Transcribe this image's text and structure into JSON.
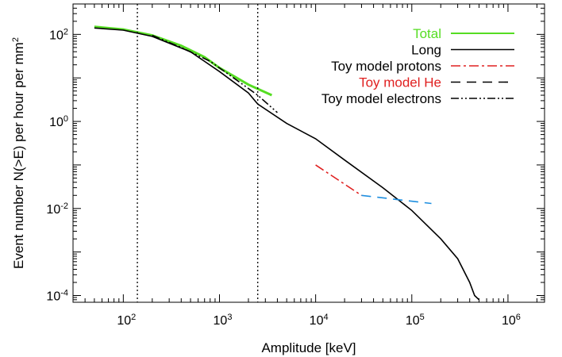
{
  "chart_data": {
    "type": "line",
    "title": "",
    "xlabel": "Amplitude [keV]",
    "ylabel": "Event number N(>E) per hour per mm",
    "ylabel_superscript": "2",
    "xscale": "log",
    "yscale": "log",
    "xlim": [
      30,
      2400000
    ],
    "ylim": [
      7e-05,
      500
    ],
    "x_ticks": [
      {
        "base": "10",
        "exp": "2",
        "value": 100
      },
      {
        "base": "10",
        "exp": "3",
        "value": 1000
      },
      {
        "base": "10",
        "exp": "4",
        "value": 10000
      },
      {
        "base": "10",
        "exp": "5",
        "value": 100000
      },
      {
        "base": "10",
        "exp": "6",
        "value": 1000000
      }
    ],
    "y_ticks": [
      {
        "base": "10",
        "exp": "-4",
        "value": 0.0001
      },
      {
        "base": "10",
        "exp": "-2",
        "value": 0.01
      },
      {
        "base": "10",
        "exp": "0",
        "value": 1
      },
      {
        "base": "10",
        "exp": "2",
        "value": 100
      }
    ],
    "vertical_markers": [
      140,
      2500
    ],
    "grid": false,
    "legend_position": "top-right",
    "legend": [
      {
        "label": "Total",
        "label_color": "#55dd22",
        "line_color": "#55dd22",
        "dash": "solid"
      },
      {
        "label": "Long",
        "label_color": "#000000",
        "line_color": "#000000",
        "dash": "solid"
      },
      {
        "label": "Toy model protons",
        "label_color": "#000000",
        "line_color": "#e02020",
        "dash": "dashdot"
      },
      {
        "label": "Toy model He",
        "label_color": "#e02020",
        "line_color": "#000000",
        "dash": "dashed"
      },
      {
        "label": "Toy model electrons",
        "label_color": "#000000",
        "line_color": "#000000",
        "dash": "dashdotdot"
      }
    ],
    "series": [
      {
        "name": "Total",
        "color": "#55dd22",
        "x": [
          50,
          100,
          200,
          400,
          700,
          1000,
          2000,
          3500
        ],
        "y": [
          150,
          130,
          95,
          55,
          30,
          17,
          7,
          4
        ]
      },
      {
        "name": "Long",
        "color": "#000000",
        "x": [
          50,
          100,
          200,
          500,
          1000,
          2000,
          2500,
          5000,
          10000,
          20000,
          50000,
          100000,
          200000,
          300000,
          400000,
          450000,
          500000
        ],
        "y": [
          140,
          125,
          90,
          40,
          14,
          4.5,
          2.5,
          0.9,
          0.4,
          0.13,
          0.03,
          0.009,
          0.002,
          0.0007,
          0.0002,
          0.0001,
          8e-05
        ]
      },
      {
        "name": "Toy model protons",
        "color": "#e02020",
        "x": [
          10000,
          30000
        ],
        "y": [
          0.1,
          0.02
        ]
      },
      {
        "name": "Toy model He",
        "color": "#1f8fe0",
        "x": [
          30000,
          160000
        ],
        "y": [
          0.02,
          0.013
        ]
      },
      {
        "name": "Toy model electrons",
        "color": "#000000",
        "x": [
          200,
          400,
          800,
          1500,
          2500,
          4000
        ],
        "y": [
          95,
          50,
          24,
          9,
          4,
          1.6
        ]
      }
    ]
  }
}
